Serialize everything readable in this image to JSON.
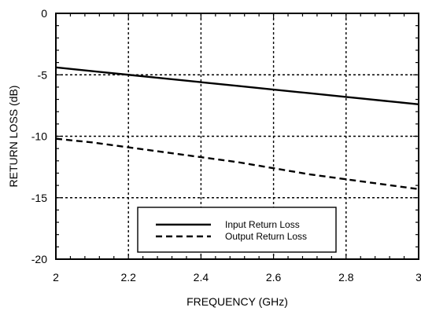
{
  "chart_data": {
    "type": "line",
    "title": "",
    "xlabel": "FREQUENCY (GHz)",
    "ylabel": "RETURN LOSS (dB)",
    "xlim": [
      2,
      3
    ],
    "ylim": [
      -20,
      0
    ],
    "x_ticks": [
      2,
      2.2,
      2.4,
      2.6,
      2.8,
      3
    ],
    "x_tick_labels": [
      "2",
      "2.2",
      "2.4",
      "2.6",
      "2.8",
      "3"
    ],
    "y_ticks": [
      0,
      -5,
      -10,
      -15,
      -20
    ],
    "y_tick_labels": [
      "0",
      "-5",
      "-10",
      "-15",
      "-20"
    ],
    "grid": true,
    "legend_position": "bottom-center",
    "series": [
      {
        "name": "Input Return Loss",
        "style": "solid",
        "color": "#000000",
        "x": [
          2.0,
          2.1,
          2.2,
          2.3,
          2.4,
          2.5,
          2.6,
          2.7,
          2.8,
          2.9,
          3.0
        ],
        "y": [
          -4.4,
          -4.7,
          -5.0,
          -5.3,
          -5.6,
          -5.9,
          -6.2,
          -6.5,
          -6.8,
          -7.1,
          -7.4
        ]
      },
      {
        "name": "Output Return Loss",
        "style": "dashed",
        "color": "#000000",
        "x": [
          2.0,
          2.1,
          2.2,
          2.3,
          2.4,
          2.5,
          2.6,
          2.7,
          2.8,
          2.9,
          3.0
        ],
        "y": [
          -10.2,
          -10.5,
          -10.9,
          -11.3,
          -11.7,
          -12.1,
          -12.6,
          -13.1,
          -13.5,
          -13.9,
          -14.3
        ]
      }
    ]
  }
}
